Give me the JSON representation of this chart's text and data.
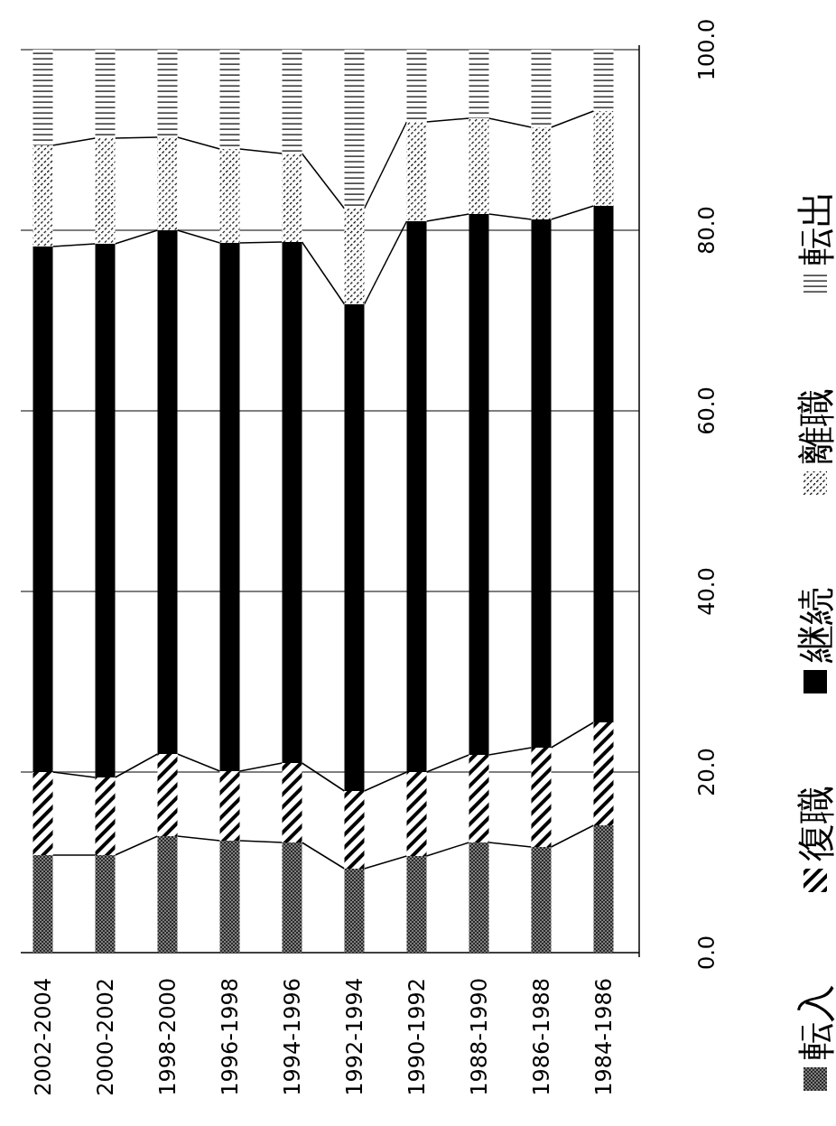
{
  "chart_data": {
    "type": "bar",
    "stacked": true,
    "categories": [
      "2002-2004",
      "2000-2002",
      "1998-2000",
      "1996-1998",
      "1994-1996",
      "1992-1994",
      "1990-1992",
      "1988-1990",
      "1986-1988",
      "1984-1986"
    ],
    "series": [
      {
        "name": "転入",
        "color": "#808080",
        "values": [
          10.8,
          10.8,
          12.9,
          12.4,
          12.2,
          9.3,
          10.7,
          12.2,
          11.7,
          14.1
        ]
      },
      {
        "name": "復職",
        "color": "#ffffff",
        "values": [
          9.2,
          8.6,
          9.1,
          7.7,
          8.8,
          8.6,
          9.3,
          9.7,
          11.0,
          11.4
        ]
      },
      {
        "name": "継続",
        "color": "#000000",
        "values": [
          58.2,
          59.1,
          58.0,
          58.5,
          57.7,
          53.9,
          61.0,
          59.9,
          58.5,
          57.2
        ]
      },
      {
        "name": "離職",
        "color": "#fefefe",
        "values": [
          11.2,
          11.7,
          10.3,
          10.4,
          9.8,
          10.6,
          11.0,
          10.6,
          10.2,
          10.5
        ]
      },
      {
        "name": "転出",
        "color": "#fdfdfd",
        "values": [
          10.6,
          9.8,
          9.7,
          11.0,
          11.5,
          17.6,
          8.0,
          7.6,
          8.6,
          6.8
        ]
      }
    ],
    "ylim": [
      0,
      100
    ],
    "yticks": [
      {
        "value": 0,
        "label": "0.0"
      },
      {
        "value": 20,
        "label": "20.0"
      },
      {
        "value": 40,
        "label": "40.0"
      },
      {
        "value": 60,
        "label": "60.0"
      },
      {
        "value": 80,
        "label": "80.0"
      },
      {
        "value": 100,
        "label": "100.0"
      }
    ],
    "grid": "y",
    "legend": "right"
  }
}
